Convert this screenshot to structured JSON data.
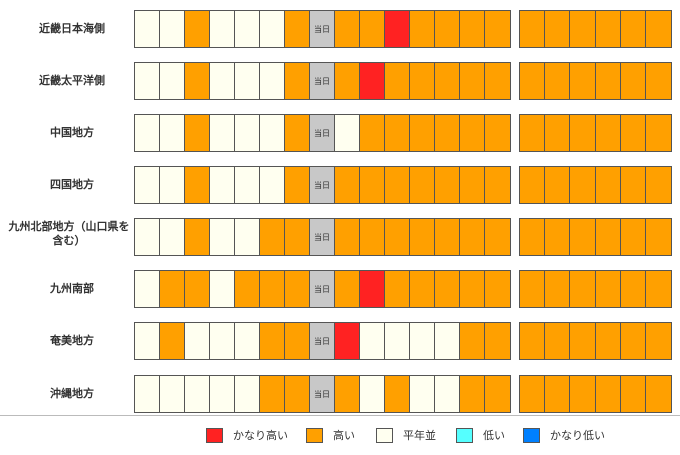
{
  "colors": {
    "H": "#ff2222",
    "O": "#ffa000",
    "N": "#fffff0",
    "L": "#55ffff",
    "X": "#0080ff",
    "T": "#c8c8c8"
  },
  "today_label": "当日",
  "regions": [
    {
      "name": "近畿日本海側",
      "cells": [
        "N",
        "N",
        "O",
        "N",
        "N",
        "N",
        "O",
        "T",
        "O",
        "O",
        "H",
        "O",
        "O",
        "O",
        "O"
      ],
      "extra": [
        "O",
        "O",
        "O",
        "O",
        "O",
        "O"
      ]
    },
    {
      "name": "近畿太平洋側",
      "cells": [
        "N",
        "N",
        "O",
        "N",
        "N",
        "N",
        "O",
        "T",
        "O",
        "H",
        "O",
        "O",
        "O",
        "O",
        "O"
      ],
      "extra": [
        "O",
        "O",
        "O",
        "O",
        "O",
        "O"
      ]
    },
    {
      "name": "中国地方",
      "cells": [
        "N",
        "N",
        "O",
        "N",
        "N",
        "N",
        "O",
        "T",
        "N",
        "O",
        "O",
        "O",
        "O",
        "O",
        "O"
      ],
      "extra": [
        "O",
        "O",
        "O",
        "O",
        "O",
        "O"
      ]
    },
    {
      "name": "四国地方",
      "cells": [
        "N",
        "N",
        "O",
        "N",
        "N",
        "N",
        "O",
        "T",
        "O",
        "O",
        "O",
        "O",
        "O",
        "O",
        "O"
      ],
      "extra": [
        "O",
        "O",
        "O",
        "O",
        "O",
        "O"
      ]
    },
    {
      "name": "九州北部地方（山口県を含む）",
      "cells": [
        "N",
        "N",
        "O",
        "N",
        "N",
        "O",
        "O",
        "T",
        "O",
        "O",
        "O",
        "O",
        "O",
        "O",
        "O"
      ],
      "extra": [
        "O",
        "O",
        "O",
        "O",
        "O",
        "O"
      ]
    },
    {
      "name": "九州南部",
      "cells": [
        "N",
        "O",
        "O",
        "N",
        "O",
        "O",
        "O",
        "T",
        "O",
        "H",
        "O",
        "O",
        "O",
        "O",
        "O"
      ],
      "extra": [
        "O",
        "O",
        "O",
        "O",
        "O",
        "O"
      ]
    },
    {
      "name": "奄美地方",
      "cells": [
        "N",
        "O",
        "N",
        "N",
        "N",
        "O",
        "O",
        "T",
        "H",
        "N",
        "N",
        "N",
        "N",
        "O",
        "O"
      ],
      "extra": [
        "O",
        "O",
        "O",
        "O",
        "O",
        "O"
      ]
    },
    {
      "name": "沖縄地方",
      "cells": [
        "N",
        "N",
        "N",
        "N",
        "N",
        "O",
        "O",
        "T",
        "O",
        "N",
        "O",
        "N",
        "N",
        "O",
        "O"
      ],
      "extra": [
        "O",
        "O",
        "O",
        "O",
        "O",
        "O"
      ]
    }
  ],
  "legend": [
    {
      "label": "かなり高い",
      "color": "H"
    },
    {
      "label": "高い",
      "color": "O"
    },
    {
      "label": "平年並",
      "color": "N"
    },
    {
      "label": "低い",
      "color": "L"
    },
    {
      "label": "かなり低い",
      "color": "X"
    }
  ]
}
